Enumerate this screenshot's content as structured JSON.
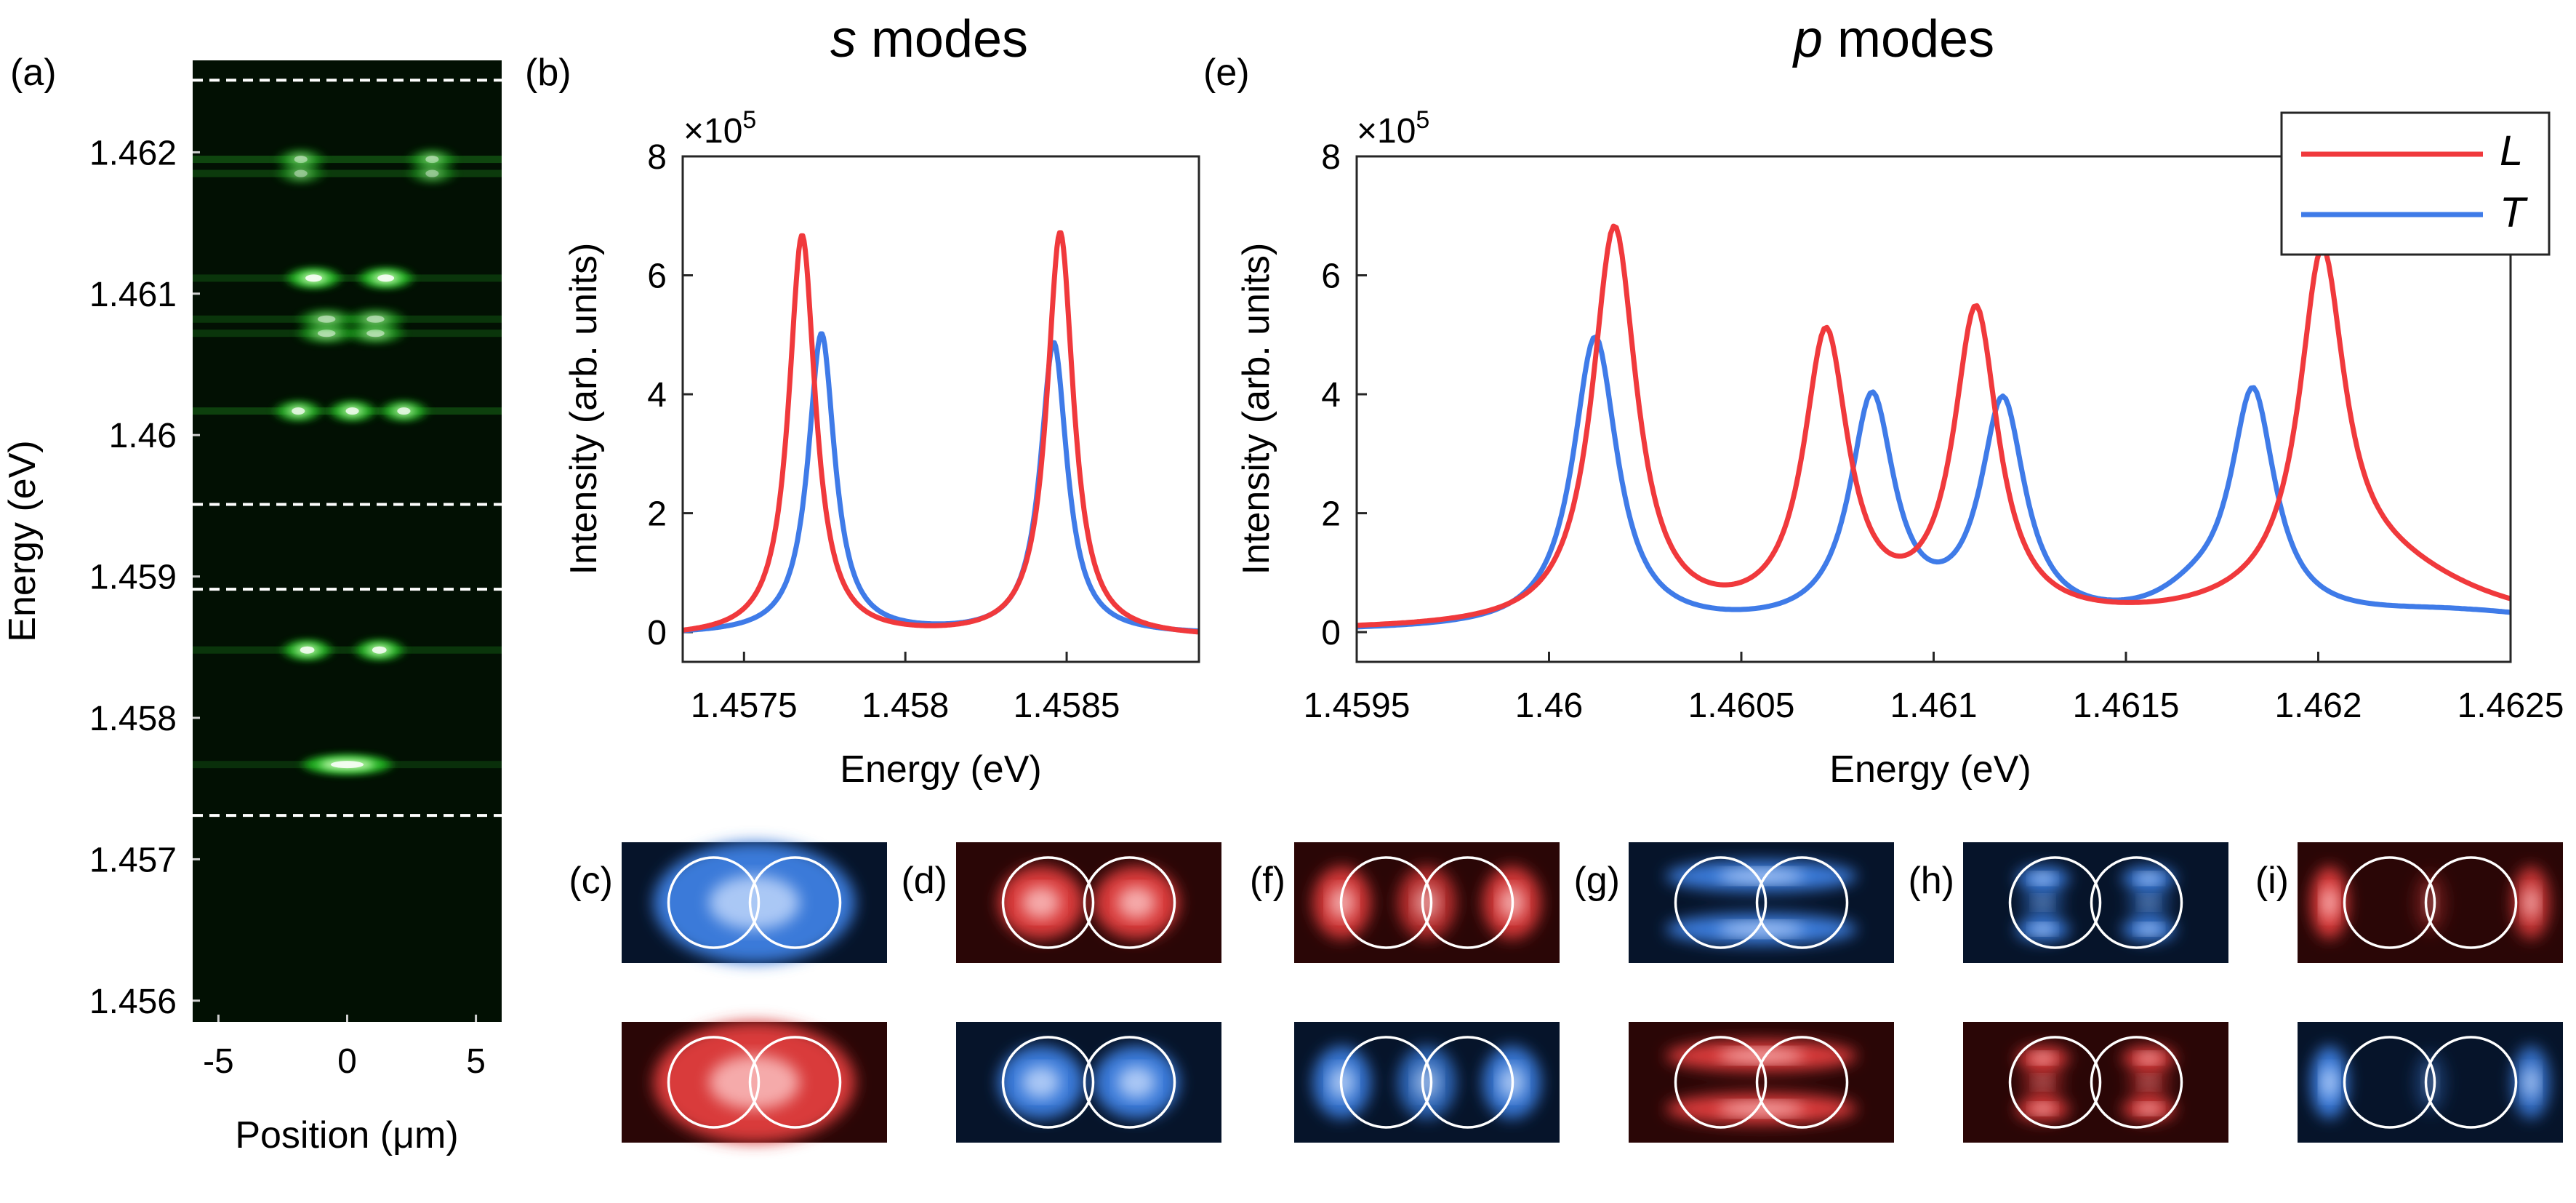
{
  "panel_labels": [
    "(a)",
    "(b)",
    "(c)",
    "(d)",
    "(e)",
    "(f)",
    "(g)",
    "(h)",
    "(i)"
  ],
  "titles": {
    "s": "s",
    "s_rest": " modes",
    "p": "p",
    "p_rest": " modes"
  },
  "colors": {
    "L": "#f0393c",
    "T": "#3f7be8",
    "axis": "#262626",
    "dashed": "#ffffff"
  },
  "chart_data": [
    {
      "id": "a",
      "type": "heatmap",
      "xlabel": "Position (μm)",
      "ylabel": "Energy (eV)",
      "xlim": [
        -6,
        6
      ],
      "ylim": [
        1.45585,
        1.46265
      ],
      "xticks": [
        -5,
        0,
        5
      ],
      "xtick_labels": [
        "-5",
        "0",
        "5"
      ],
      "yticks": [
        1.456,
        1.457,
        1.458,
        1.459,
        1.46,
        1.461,
        1.462
      ],
      "ytick_labels": [
        "1.456",
        "1.457",
        "1.458",
        "1.459",
        "1.46",
        "1.461",
        "1.462"
      ],
      "dashed_lines": [
        1.45731,
        1.45891,
        1.45951,
        1.46251
      ],
      "emission_lines": [
        {
          "E": 1.45767,
          "spots": [
            {
              "x": 0,
              "w": 2.5,
              "i": 1.0
            }
          ],
          "band": 0.25
        },
        {
          "E": 1.45848,
          "spots": [
            {
              "x": -1.55,
              "w": 0.9,
              "i": 0.95
            },
            {
              "x": 1.25,
              "w": 0.9,
              "i": 0.95
            }
          ],
          "band": 0.3
        },
        {
          "E": 1.46017,
          "spots": [
            {
              "x": -1.9,
              "w": 0.8,
              "i": 0.85
            },
            {
              "x": 0.2,
              "w": 0.8,
              "i": 0.9
            },
            {
              "x": 2.2,
              "w": 0.8,
              "i": 0.85
            }
          ],
          "band": 0.4
        },
        {
          "E": 1.46072,
          "spots": [
            {
              "x": -0.8,
              "w": 1.2,
              "i": 0.6
            },
            {
              "x": 1.1,
              "w": 1.2,
              "i": 0.6
            }
          ],
          "band": 0.3
        },
        {
          "E": 1.46082,
          "spots": [
            {
              "x": -0.8,
              "w": 1.2,
              "i": 0.55
            },
            {
              "x": 1.1,
              "w": 1.2,
              "i": 0.55
            }
          ],
          "band": 0.3
        },
        {
          "E": 1.46111,
          "spots": [
            {
              "x": -1.3,
              "w": 1.1,
              "i": 1.0
            },
            {
              "x": 1.5,
              "w": 1.1,
              "i": 1.0
            }
          ],
          "band": 0.3
        },
        {
          "E": 1.46195,
          "spots": [
            {
              "x": -1.8,
              "w": 0.8,
              "i": 0.55
            },
            {
              "x": 3.3,
              "w": 0.8,
              "i": 0.55
            }
          ],
          "band": 0.45
        },
        {
          "E": 1.46185,
          "spots": [
            {
              "x": -1.8,
              "w": 0.8,
              "i": 0.45
            },
            {
              "x": 3.3,
              "w": 0.8,
              "i": 0.45
            }
          ],
          "band": 0.35
        }
      ]
    },
    {
      "id": "b",
      "type": "line",
      "title": "s modes",
      "xlabel": "Energy (eV)",
      "ylabel": "Intensity (arb. units)",
      "xlim": [
        1.45731,
        1.45891
      ],
      "ylim": [
        -0.5,
        8
      ],
      "xticks": [
        1.4575,
        1.458,
        1.4585
      ],
      "xtick_labels": [
        "1.4575",
        "1.458",
        "1.4585"
      ],
      "yticks": [
        0,
        2,
        4,
        6,
        8
      ],
      "ytick_labels": [
        "0",
        "2",
        "4",
        "6",
        "8"
      ],
      "exponent": "×10",
      "exponent_power": "5",
      "peak_width": 5e-05,
      "series": [
        {
          "name": "L",
          "baseline": -0.1,
          "peaks": [
            {
              "x0": 1.45768,
              "A": 6.75
            },
            {
              "x0": 1.45848,
              "A": 6.8
            }
          ]
        },
        {
          "name": "T",
          "baseline": -0.05,
          "peaks": [
            {
              "x0": 1.45774,
              "A": 5.05
            },
            {
              "x0": 1.45846,
              "A": 4.9
            }
          ]
        }
      ]
    },
    {
      "id": "e",
      "type": "line",
      "title": "p modes",
      "xlabel": "Energy (eV)",
      "ylabel": "Intensity (arb. units)",
      "xlim": [
        1.4595,
        1.4625
      ],
      "ylim": [
        -0.5,
        8
      ],
      "xticks": [
        1.4595,
        1.46,
        1.4605,
        1.461,
        1.4615,
        1.462,
        1.4625
      ],
      "xtick_labels": [
        "1.4595",
        "1.46",
        "1.4605",
        "1.461",
        "1.4615",
        "1.462",
        "1.4625"
      ],
      "yticks": [
        0,
        2,
        4,
        6,
        8
      ],
      "ytick_labels": [
        "0",
        "2",
        "4",
        "6",
        "8"
      ],
      "exponent": "×10",
      "exponent_power": "5",
      "peak_width": 7e-05,
      "legend": [
        "L",
        "T"
      ],
      "series": [
        {
          "name": "L",
          "baseline": 0,
          "peaks": [
            {
              "x0": 1.46017,
              "A": 6.7
            },
            {
              "x0": 1.46072,
              "A": 4.8
            },
            {
              "x0": 1.46111,
              "A": 5.2
            },
            {
              "x0": 1.46201,
              "A": 5.6
            },
            {
              "x0": 1.46215,
              "A": 1.0,
              "w": 0.0003
            }
          ]
        },
        {
          "name": "T",
          "baseline": 0,
          "peaks": [
            {
              "x0": 1.46012,
              "A": 4.9
            },
            {
              "x0": 1.46084,
              "A": 3.8
            },
            {
              "x0": 1.46118,
              "A": 3.7
            },
            {
              "x0": 1.46183,
              "A": 3.8
            },
            {
              "x0": 1.46168,
              "A": 0.35,
              "w": 0.00012
            },
            {
              "x0": 1.46235,
              "A": 0.3,
              "w": 0.0004
            }
          ]
        }
      ]
    }
  ],
  "mode_images": [
    {
      "label": "(c)",
      "top": {
        "color": "T",
        "pattern": "s"
      },
      "bottom": {
        "color": "L",
        "pattern": "s"
      }
    },
    {
      "label": "(d)",
      "top": {
        "color": "L",
        "pattern": "s2"
      },
      "bottom": {
        "color": "T",
        "pattern": "s2"
      }
    },
    {
      "label": "(f)",
      "top": {
        "color": "L",
        "pattern": "pL"
      },
      "bottom": {
        "color": "T",
        "pattern": "pL"
      }
    },
    {
      "label": "(g)",
      "top": {
        "color": "T",
        "pattern": "pT"
      },
      "bottom": {
        "color": "L",
        "pattern": "pT"
      }
    },
    {
      "label": "(h)",
      "top": {
        "color": "T",
        "pattern": "quad"
      },
      "bottom": {
        "color": "L",
        "pattern": "quad"
      }
    },
    {
      "label": "(i)",
      "top": {
        "color": "L",
        "pattern": "outer"
      },
      "bottom": {
        "color": "T",
        "pattern": "outer"
      }
    }
  ]
}
